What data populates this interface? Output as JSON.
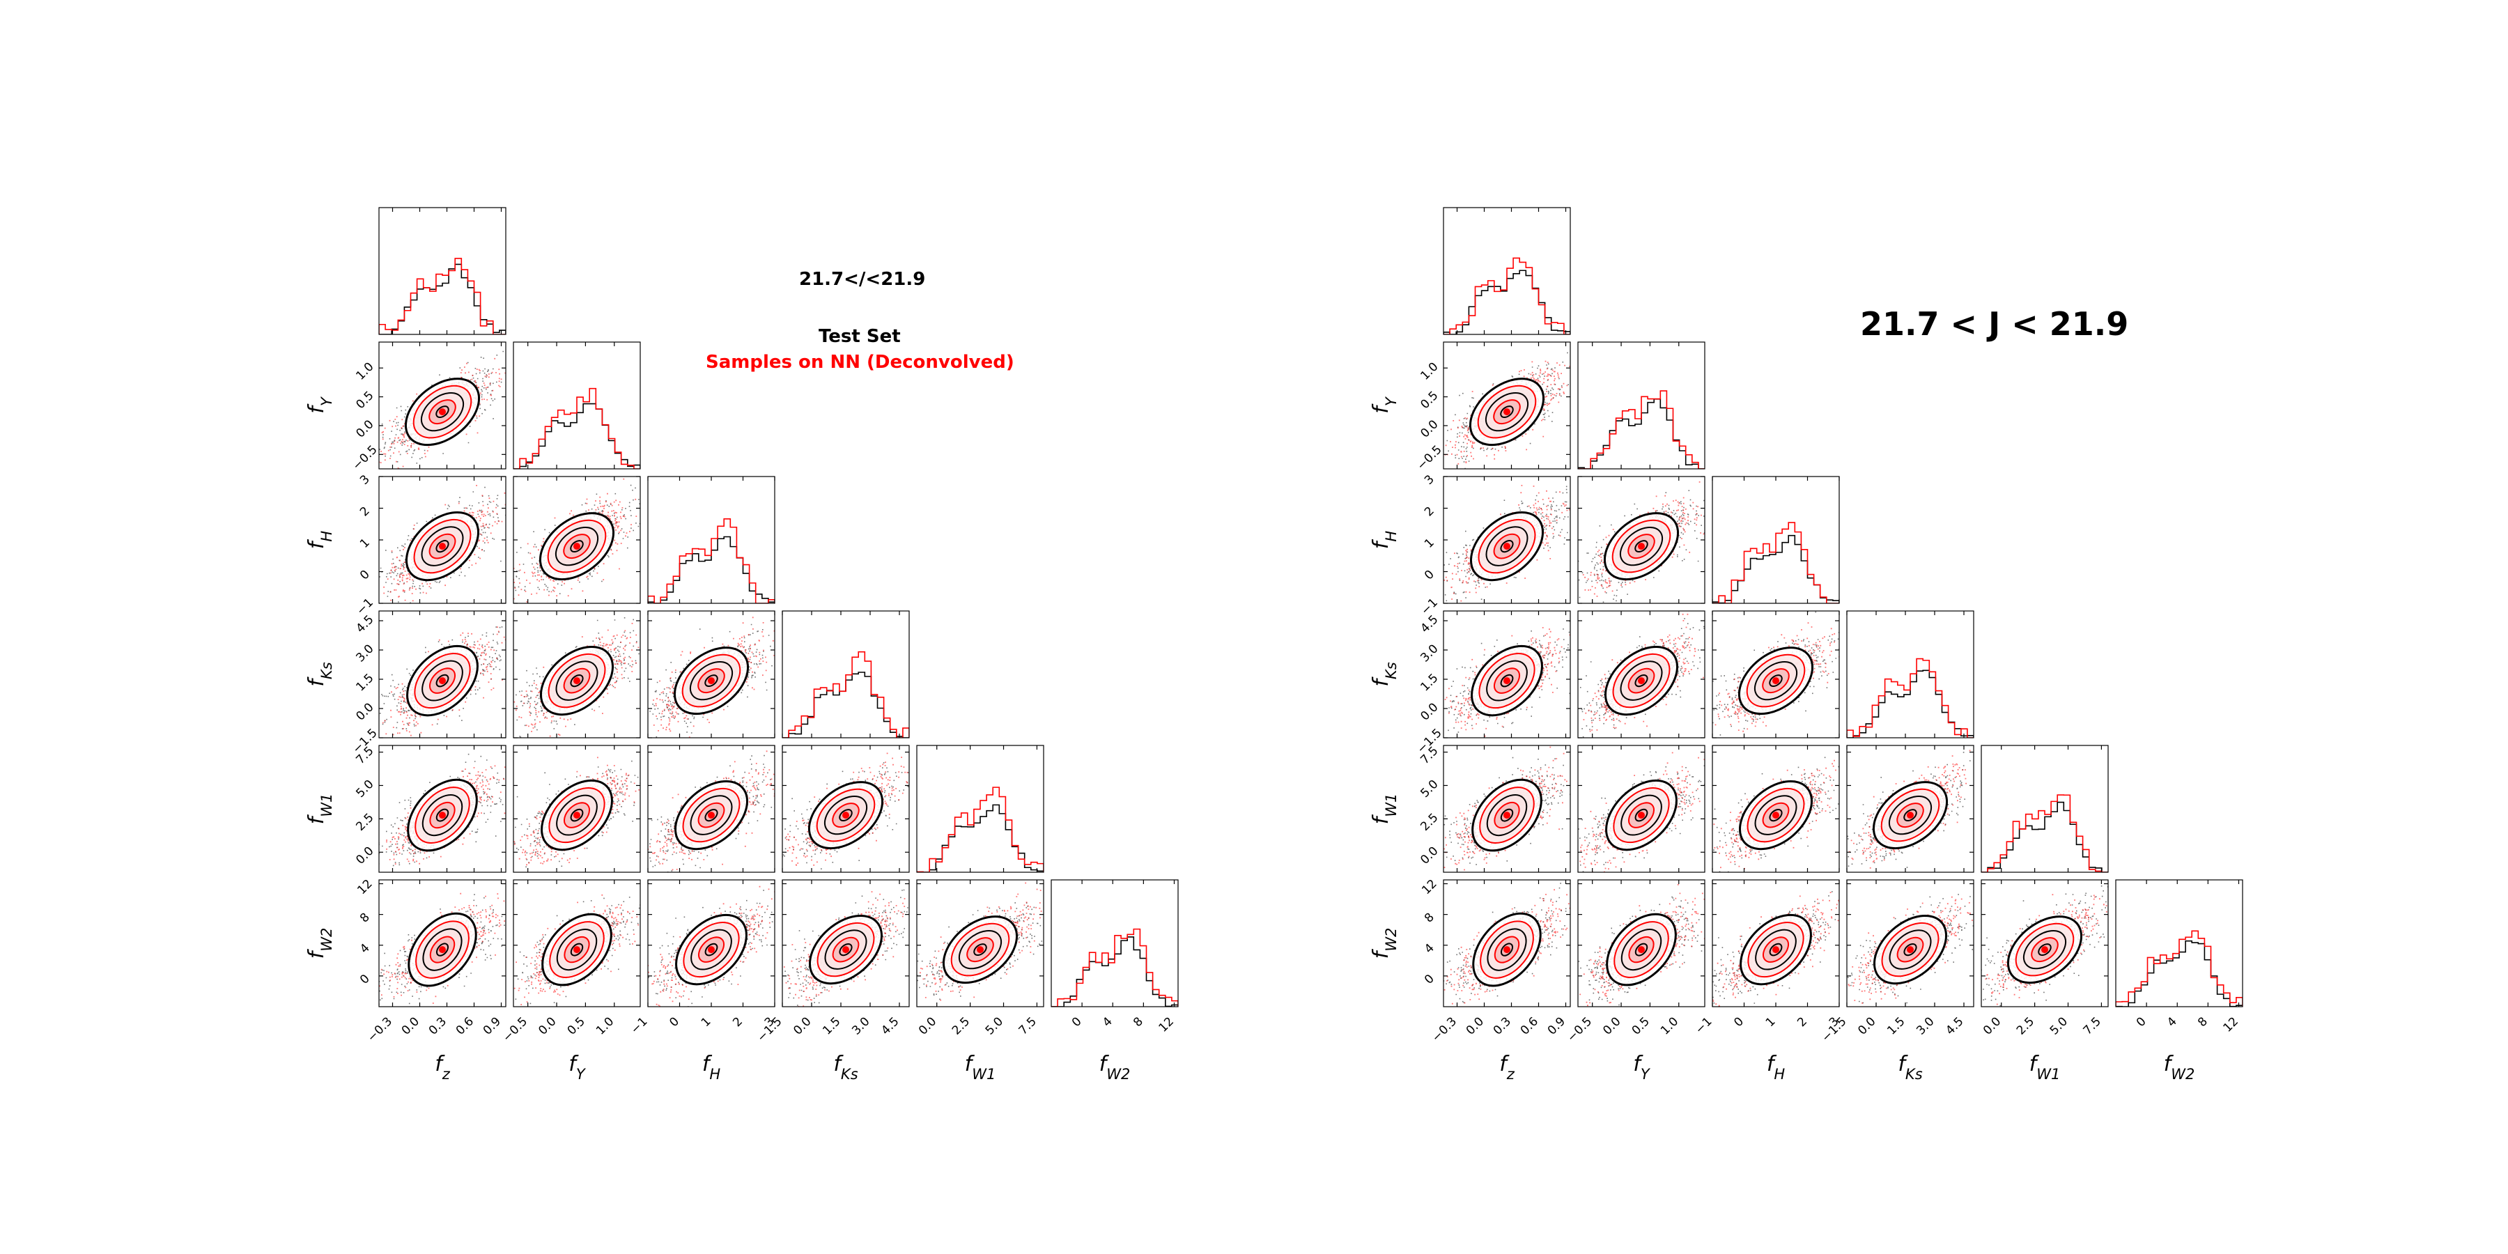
{
  "chart_data": [
    {
      "type": "corner",
      "annotation_title": "21.7</<21.9",
      "legend": [
        {
          "name": "Test Set",
          "color": "#000000"
        },
        {
          "name": "Samples on NN (Deconvolved)",
          "color": "#ff0000"
        }
      ],
      "variables": [
        {
          "label": "f",
          "sub": "z",
          "range": [
            -0.45,
            0.95
          ],
          "ticks": [
            -0.3,
            0.0,
            0.3,
            0.6,
            0.9
          ],
          "tick_labels": [
            "−0.3",
            "0.0",
            "0.3",
            "0.6",
            "0.9"
          ]
        },
        {
          "label": "f",
          "sub": "Y",
          "range": [
            -0.75,
            1.45
          ],
          "ticks": [
            -0.5,
            0.0,
            0.5,
            1.0
          ],
          "tick_labels": [
            "−0.5",
            "0.0",
            "0.5",
            "1.0"
          ]
        },
        {
          "label": "f",
          "sub": "H",
          "range": [
            -1.0,
            3.0
          ],
          "ticks": [
            -1,
            0,
            1,
            2,
            3
          ],
          "tick_labels": [
            "−1",
            "0",
            "1",
            "2",
            "3"
          ]
        },
        {
          "label": "f",
          "sub": "Ks",
          "range": [
            -1.5,
            5.0
          ],
          "ticks": [
            -1.5,
            0.0,
            1.5,
            3.0,
            4.5
          ],
          "tick_labels": [
            "−1.5",
            "0.0",
            "1.5",
            "3.0",
            "4.5"
          ]
        },
        {
          "label": "f",
          "sub": "W1",
          "range": [
            -1.5,
            8.0
          ],
          "ticks": [
            0.0,
            2.5,
            5.0,
            7.5
          ],
          "tick_labels": [
            "0.0",
            "2.5",
            "5.0",
            "7.5"
          ]
        },
        {
          "label": "f",
          "sub": "W2",
          "range": [
            -4.0,
            12.5
          ],
          "ticks": [
            0,
            4,
            8,
            12
          ],
          "tick_labels": [
            "0",
            "4",
            "8",
            "12"
          ]
        }
      ],
      "series": [
        {
          "name": "Test Set",
          "color": "#000000"
        },
        {
          "name": "Samples on NN (Deconvolved)",
          "color": "#ff0000"
        }
      ]
    },
    {
      "type": "corner",
      "annotation_title": "21.7 < J < 21.9",
      "variables": [
        {
          "label": "f",
          "sub": "z",
          "range": [
            -0.45,
            0.95
          ],
          "ticks": [
            -0.3,
            0.0,
            0.3,
            0.6,
            0.9
          ],
          "tick_labels": [
            "−0.3",
            "0.0",
            "0.3",
            "0.6",
            "0.9"
          ]
        },
        {
          "label": "f",
          "sub": "Y",
          "range": [
            -0.75,
            1.45
          ],
          "ticks": [
            -0.5,
            0.0,
            0.5,
            1.0
          ],
          "tick_labels": [
            "−0.5",
            "0.0",
            "0.5",
            "1.0"
          ]
        },
        {
          "label": "f",
          "sub": "H",
          "range": [
            -1.0,
            3.0
          ],
          "ticks": [
            -1,
            0,
            1,
            2,
            3
          ],
          "tick_labels": [
            "−1",
            "0",
            "1",
            "2",
            "3"
          ]
        },
        {
          "label": "f",
          "sub": "Ks",
          "range": [
            -1.5,
            5.0
          ],
          "ticks": [
            -1.5,
            0.0,
            1.5,
            3.0,
            4.5
          ],
          "tick_labels": [
            "−1.5",
            "0.0",
            "1.5",
            "3.0",
            "4.5"
          ]
        },
        {
          "label": "f",
          "sub": "W1",
          "range": [
            -1.5,
            8.0
          ],
          "ticks": [
            0.0,
            2.5,
            5.0,
            7.5
          ],
          "tick_labels": [
            "0.0",
            "2.5",
            "5.0",
            "7.5"
          ]
        },
        {
          "label": "f",
          "sub": "W2",
          "range": [
            -4.0,
            12.5
          ],
          "ticks": [
            0,
            4,
            8,
            12
          ],
          "tick_labels": [
            "0",
            "4",
            "8",
            "12"
          ]
        }
      ],
      "series": [
        {
          "name": "Test Set",
          "color": "#000000"
        },
        {
          "name": "Samples on NN (Deconvolved)",
          "color": "#ff0000"
        }
      ]
    }
  ]
}
